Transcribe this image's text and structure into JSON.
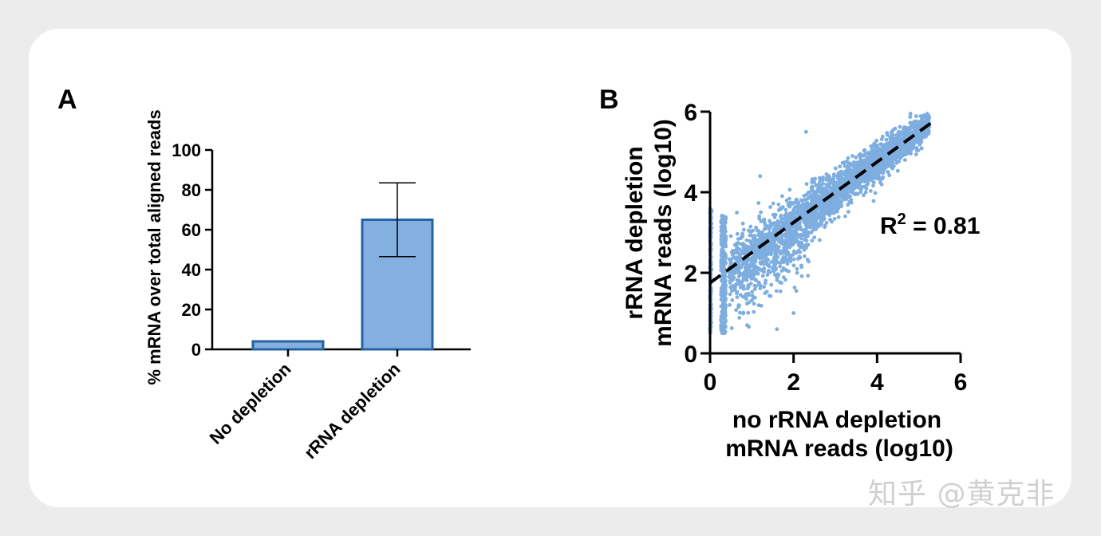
{
  "colors": {
    "bar_fill": "#83b0e0",
    "bar_edge": "#2464a4",
    "scatter": "#7eaee0",
    "axis": "#000000"
  },
  "watermark": "知乎 @黄克非",
  "chart_data": [
    {
      "panel": "A",
      "type": "bar",
      "title": "",
      "xlabel": "",
      "ylabel": "% mRNA over total aligned reads",
      "categories": [
        "No depletion",
        "rRNA depletion"
      ],
      "values": [
        4,
        65
      ],
      "error_upper": [
        4,
        83.5
      ],
      "error_lower": [
        4,
        46.5
      ],
      "ylim": [
        0,
        100
      ],
      "yticks": [
        "0",
        "20",
        "40",
        "60",
        "80",
        "100"
      ]
    },
    {
      "panel": "B",
      "type": "scatter",
      "xlabel": [
        "no rRNA depletion",
        "mRNA reads (log10)"
      ],
      "ylabel": [
        "rRNA depletion",
        "mRNA reads (log10)"
      ],
      "xlim": [
        0,
        6
      ],
      "ylim": [
        0,
        6
      ],
      "xticks": [
        "0",
        "2",
        "4",
        "6"
      ],
      "yticks": [
        "0",
        "2",
        "4",
        "6"
      ],
      "fit_line": {
        "intercept": 1.75,
        "slope": 0.75,
        "x_range": [
          0,
          5.3
        ]
      },
      "annotation": {
        "base": "R",
        "sup": "2",
        "rest": " = 0.81"
      },
      "points_description": "dense cloud of ~3000 genes following the fit line, vertical strips at x≈0 and x≈0.3",
      "sample_points": [
        [
          0.0,
          0.6
        ],
        [
          0.0,
          1.2
        ],
        [
          0.0,
          2.0
        ],
        [
          0.0,
          2.8
        ],
        [
          0.0,
          3.5
        ],
        [
          0.3,
          0.5
        ],
        [
          0.3,
          1.5
        ],
        [
          0.3,
          2.4
        ],
        [
          0.3,
          3.4
        ],
        [
          1.0,
          2.5
        ],
        [
          1.5,
          2.9
        ],
        [
          2.0,
          3.2
        ],
        [
          2.5,
          3.7
        ],
        [
          3.0,
          4.0
        ],
        [
          3.5,
          4.4
        ],
        [
          4.0,
          4.8
        ],
        [
          4.5,
          5.1
        ],
        [
          5.0,
          5.6
        ],
        [
          5.2,
          5.95
        ],
        [
          1.6,
          0.6
        ],
        [
          2.0,
          1.0
        ],
        [
          1.2,
          4.4
        ],
        [
          2.3,
          5.5
        ],
        [
          4.8,
          5.95
        ]
      ]
    }
  ]
}
